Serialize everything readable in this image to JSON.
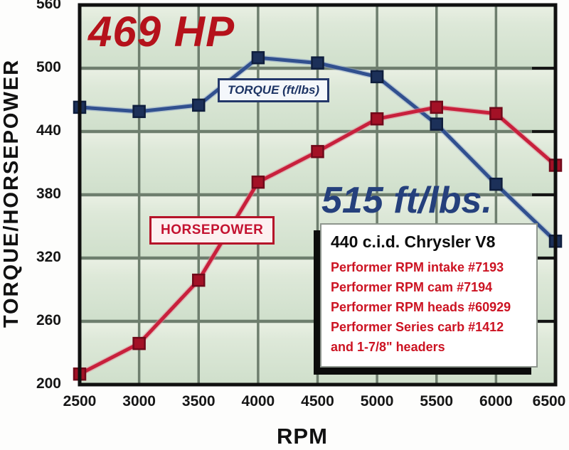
{
  "figure": {
    "y_axis_title": "TORQUE/HORSEPOWER",
    "x_axis_title": "RPM"
  },
  "annotations": {
    "hp_peak": "469 HP",
    "torque_peak": "515 ft/lbs.",
    "torque_series_label": "TORQUE (ft/lbs)",
    "hp_series_label": "HORSEPOWER"
  },
  "info_box": {
    "title": "440 c.i.d. Chrysler V8",
    "lines": [
      "Performer RPM intake #7193",
      "Performer RPM cam #7194",
      "Performer RPM heads #60929",
      "Performer Series carb #1412",
      "and 1-7/8\" headers"
    ]
  },
  "colors": {
    "plot_background": "#d8e4d4",
    "band_top": "#eaf0e4",
    "band_bottom": "#cfdfcb",
    "grid": "#6e7e6e",
    "border": "#101010",
    "hp_peak_text": "#b5121b",
    "torque_peak_text": "#25407c",
    "axis_text": "#161616"
  },
  "chart_data": {
    "type": "line",
    "x": [
      2500,
      3000,
      3500,
      4000,
      4500,
      5000,
      5500,
      6000,
      6500
    ],
    "x_ticks": [
      2500,
      3000,
      3500,
      4000,
      4500,
      5000,
      5500,
      6000,
      6500
    ],
    "y_ticks": [
      560,
      500,
      440,
      380,
      320,
      260,
      200
    ],
    "xlim": [
      2500,
      6500
    ],
    "ylim": [
      200,
      560
    ],
    "xlabel": "RPM",
    "ylabel": "TORQUE/HORSEPOWER",
    "grid": true,
    "legend_position": "on-curve-boxes",
    "series": [
      {
        "name": "TORQUE (ft/lbs)",
        "values": [
          463,
          459,
          465,
          510,
          505,
          492,
          447,
          390,
          336
        ],
        "line_color": "#31508f",
        "halo_color": "#8ea3c9",
        "marker_color": "#1c3059",
        "marker_edge": "#0f1e3d"
      },
      {
        "name": "HORSEPOWER",
        "values": [
          210,
          239,
          299,
          392,
          421,
          452,
          463,
          457,
          408
        ],
        "line_color": "#c8203c",
        "halo_color": "#e08a97",
        "marker_color": "#a31126",
        "marker_edge": "#70091a"
      }
    ],
    "annotations": [
      "469 HP",
      "515 ft/lbs."
    ]
  }
}
